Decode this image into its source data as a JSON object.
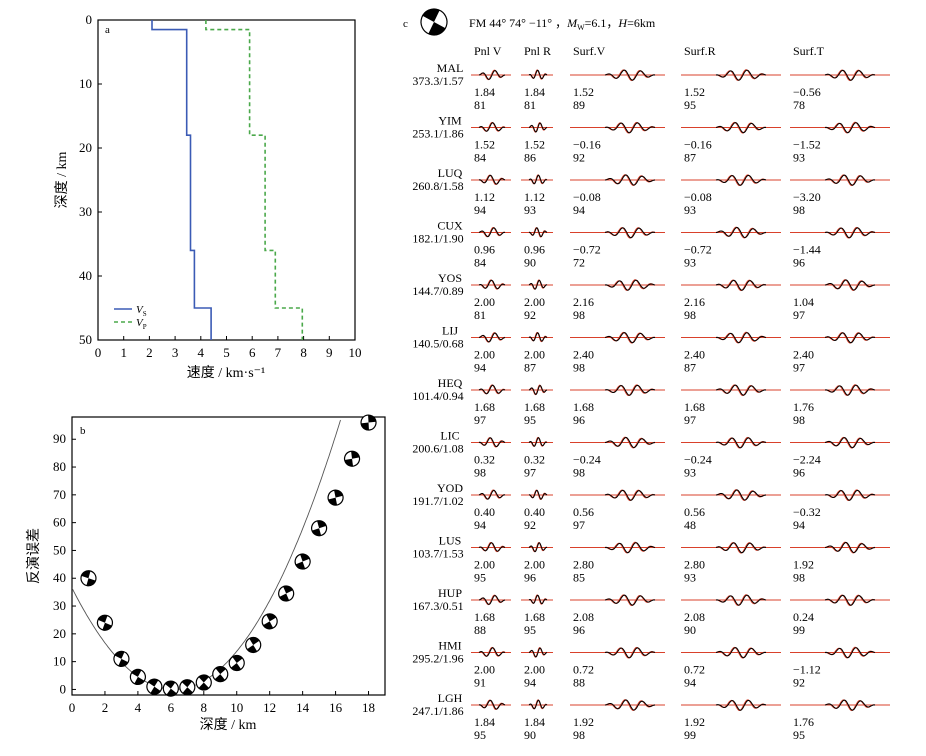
{
  "chart_data": [
    {
      "type": "line",
      "panel_label": "a",
      "xlabel": "速度 / km·s⁻¹",
      "ylabel": "深度 / km",
      "xlim": [
        0,
        10
      ],
      "ylim": [
        50,
        0
      ],
      "xticks": [
        "0",
        "1",
        "2",
        "3",
        "4",
        "5",
        "6",
        "7",
        "8",
        "9",
        "10"
      ],
      "yticks": [
        "0",
        "10",
        "20",
        "30",
        "40",
        "50"
      ],
      "legend_position": "bottom-left",
      "series": [
        {
          "name": "V_S",
          "legend_main": "V",
          "legend_sub": "S",
          "color": "#3b5bb5",
          "dash": "solid",
          "points": [
            [
              2.1,
              0
            ],
            [
              2.1,
              1.5
            ],
            [
              3.45,
              1.5
            ],
            [
              3.45,
              18
            ],
            [
              3.6,
              18
            ],
            [
              3.6,
              36
            ],
            [
              3.75,
              36
            ],
            [
              3.75,
              45
            ],
            [
              4.4,
              45
            ],
            [
              4.4,
              50
            ]
          ]
        },
        {
          "name": "V_P",
          "legend_main": "V",
          "legend_sub": "P",
          "color": "#4aa84a",
          "dash": "4,3",
          "points": [
            [
              4.2,
              0
            ],
            [
              4.2,
              1.5
            ],
            [
              5.9,
              1.5
            ],
            [
              5.9,
              18
            ],
            [
              6.5,
              18
            ],
            [
              6.5,
              36
            ],
            [
              6.9,
              36
            ],
            [
              6.9,
              45
            ],
            [
              7.95,
              45
            ],
            [
              7.95,
              50
            ]
          ]
        }
      ]
    },
    {
      "type": "scatter",
      "panel_label": "b",
      "xlabel": "深度 / km",
      "ylabel": "反演误差",
      "xlim": [
        0,
        19
      ],
      "ylim": [
        -2,
        98
      ],
      "xticks": [
        "0",
        "2",
        "4",
        "6",
        "8",
        "10",
        "12",
        "14",
        "16",
        "18"
      ],
      "yticks": [
        "0",
        "10",
        "20",
        "30",
        "40",
        "50",
        "60",
        "70",
        "80",
        "90"
      ],
      "points": [
        {
          "x": 1,
          "y": 40
        },
        {
          "x": 2,
          "y": 24
        },
        {
          "x": 3,
          "y": 11
        },
        {
          "x": 4,
          "y": 4.5
        },
        {
          "x": 5,
          "y": 1
        },
        {
          "x": 6,
          "y": 0.3
        },
        {
          "x": 7,
          "y": 0.8
        },
        {
          "x": 8,
          "y": 2.5
        },
        {
          "x": 9,
          "y": 5.5
        },
        {
          "x": 10,
          "y": 9.5
        },
        {
          "x": 11,
          "y": 16
        },
        {
          "x": 12,
          "y": 24.5
        },
        {
          "x": 13,
          "y": 34.5
        },
        {
          "x": 14,
          "y": 46
        },
        {
          "x": 15,
          "y": 58
        },
        {
          "x": 16,
          "y": 69
        },
        {
          "x": 17,
          "y": 83
        },
        {
          "x": 18,
          "y": 96
        }
      ],
      "fit_curve": {
        "vertex_x": 6.2,
        "vertex_y": 0,
        "coef": 0.95
      }
    },
    {
      "type": "waveform-table",
      "panel_label": "c",
      "solution": {
        "prefix": "FM 44°   74°   −11°  ，",
        "mw_label": "M",
        "mw_sub": "W",
        "mw_value": "=6.1，",
        "depth_label": "H",
        "depth_value": "=6km"
      },
      "columns": [
        "Pnl V",
        "Pnl R",
        "Surf.V",
        "Surf.R",
        "Surf.T"
      ],
      "stations": [
        {
          "name": "MAL",
          "dist": "373.3/1.57",
          "shifts": [
            "1.84",
            "1.84",
            "1.52",
            "1.52",
            "−0.56"
          ],
          "cc": [
            "81",
            "81",
            "89",
            "95",
            "78"
          ]
        },
        {
          "name": "YIM",
          "dist": "253.1/1.86",
          "shifts": [
            "1.52",
            "1.52",
            "−0.16",
            "−0.16",
            "−1.52"
          ],
          "cc": [
            "84",
            "86",
            "92",
            "87",
            "93"
          ]
        },
        {
          "name": "LUQ",
          "dist": "260.8/1.58",
          "shifts": [
            "1.12",
            "1.12",
            "−0.08",
            "−0.08",
            "−3.20"
          ],
          "cc": [
            "94",
            "93",
            "94",
            "93",
            "98"
          ]
        },
        {
          "name": "CUX",
          "dist": "182.1/1.90",
          "shifts": [
            "0.96",
            "0.96",
            "−0.72",
            "−0.72",
            "−1.44"
          ],
          "cc": [
            "84",
            "90",
            "72",
            "93",
            "96"
          ]
        },
        {
          "name": "YOS",
          "dist": "144.7/0.89",
          "shifts": [
            "2.00",
            "2.00",
            "2.16",
            "2.16",
            "1.04"
          ],
          "cc": [
            "81",
            "92",
            "98",
            "98",
            "97"
          ]
        },
        {
          "name": "LIJ",
          "dist": "140.5/0.68",
          "shifts": [
            "2.00",
            "2.00",
            "2.40",
            "2.40",
            "2.40"
          ],
          "cc": [
            "94",
            "87",
            "98",
            "87",
            "97"
          ]
        },
        {
          "name": "HEQ",
          "dist": "101.4/0.94",
          "shifts": [
            "1.68",
            "1.68",
            "1.68",
            "1.68",
            "1.76"
          ],
          "cc": [
            "97",
            "95",
            "96",
            "97",
            "98"
          ]
        },
        {
          "name": "LIC",
          "dist": "200.6/1.08",
          "shifts": [
            "0.32",
            "0.32",
            "−0.24",
            "−0.24",
            "−2.24"
          ],
          "cc": [
            "98",
            "97",
            "98",
            "93",
            "96"
          ]
        },
        {
          "name": "YOD",
          "dist": "191.7/1.02",
          "shifts": [
            "0.40",
            "0.40",
            "0.56",
            "0.56",
            "−0.32"
          ],
          "cc": [
            "94",
            "92",
            "97",
            "48",
            "94"
          ]
        },
        {
          "name": "LUS",
          "dist": "103.7/1.53",
          "shifts": [
            "2.00",
            "2.00",
            "2.80",
            "2.80",
            "1.92"
          ],
          "cc": [
            "95",
            "96",
            "85",
            "93",
            "98"
          ]
        },
        {
          "name": "HUP",
          "dist": "167.3/0.51",
          "shifts": [
            "1.68",
            "1.68",
            "2.08",
            "2.08",
            "0.24"
          ],
          "cc": [
            "88",
            "95",
            "96",
            "90",
            "99"
          ]
        },
        {
          "name": "HMI",
          "dist": "295.2/1.96",
          "shifts": [
            "2.00",
            "2.00",
            "0.72",
            "0.72",
            "−1.12"
          ],
          "cc": [
            "91",
            "94",
            "88",
            "94",
            "92"
          ]
        },
        {
          "name": "LGH",
          "dist": "247.1/1.86",
          "shifts": [
            "1.84",
            "1.84",
            "1.92",
            "1.92",
            "1.76"
          ],
          "cc": [
            "95",
            "90",
            "98",
            "99",
            "95"
          ]
        }
      ],
      "colors": {
        "observed": "#000000",
        "synthetic": "#d9412b"
      }
    }
  ]
}
